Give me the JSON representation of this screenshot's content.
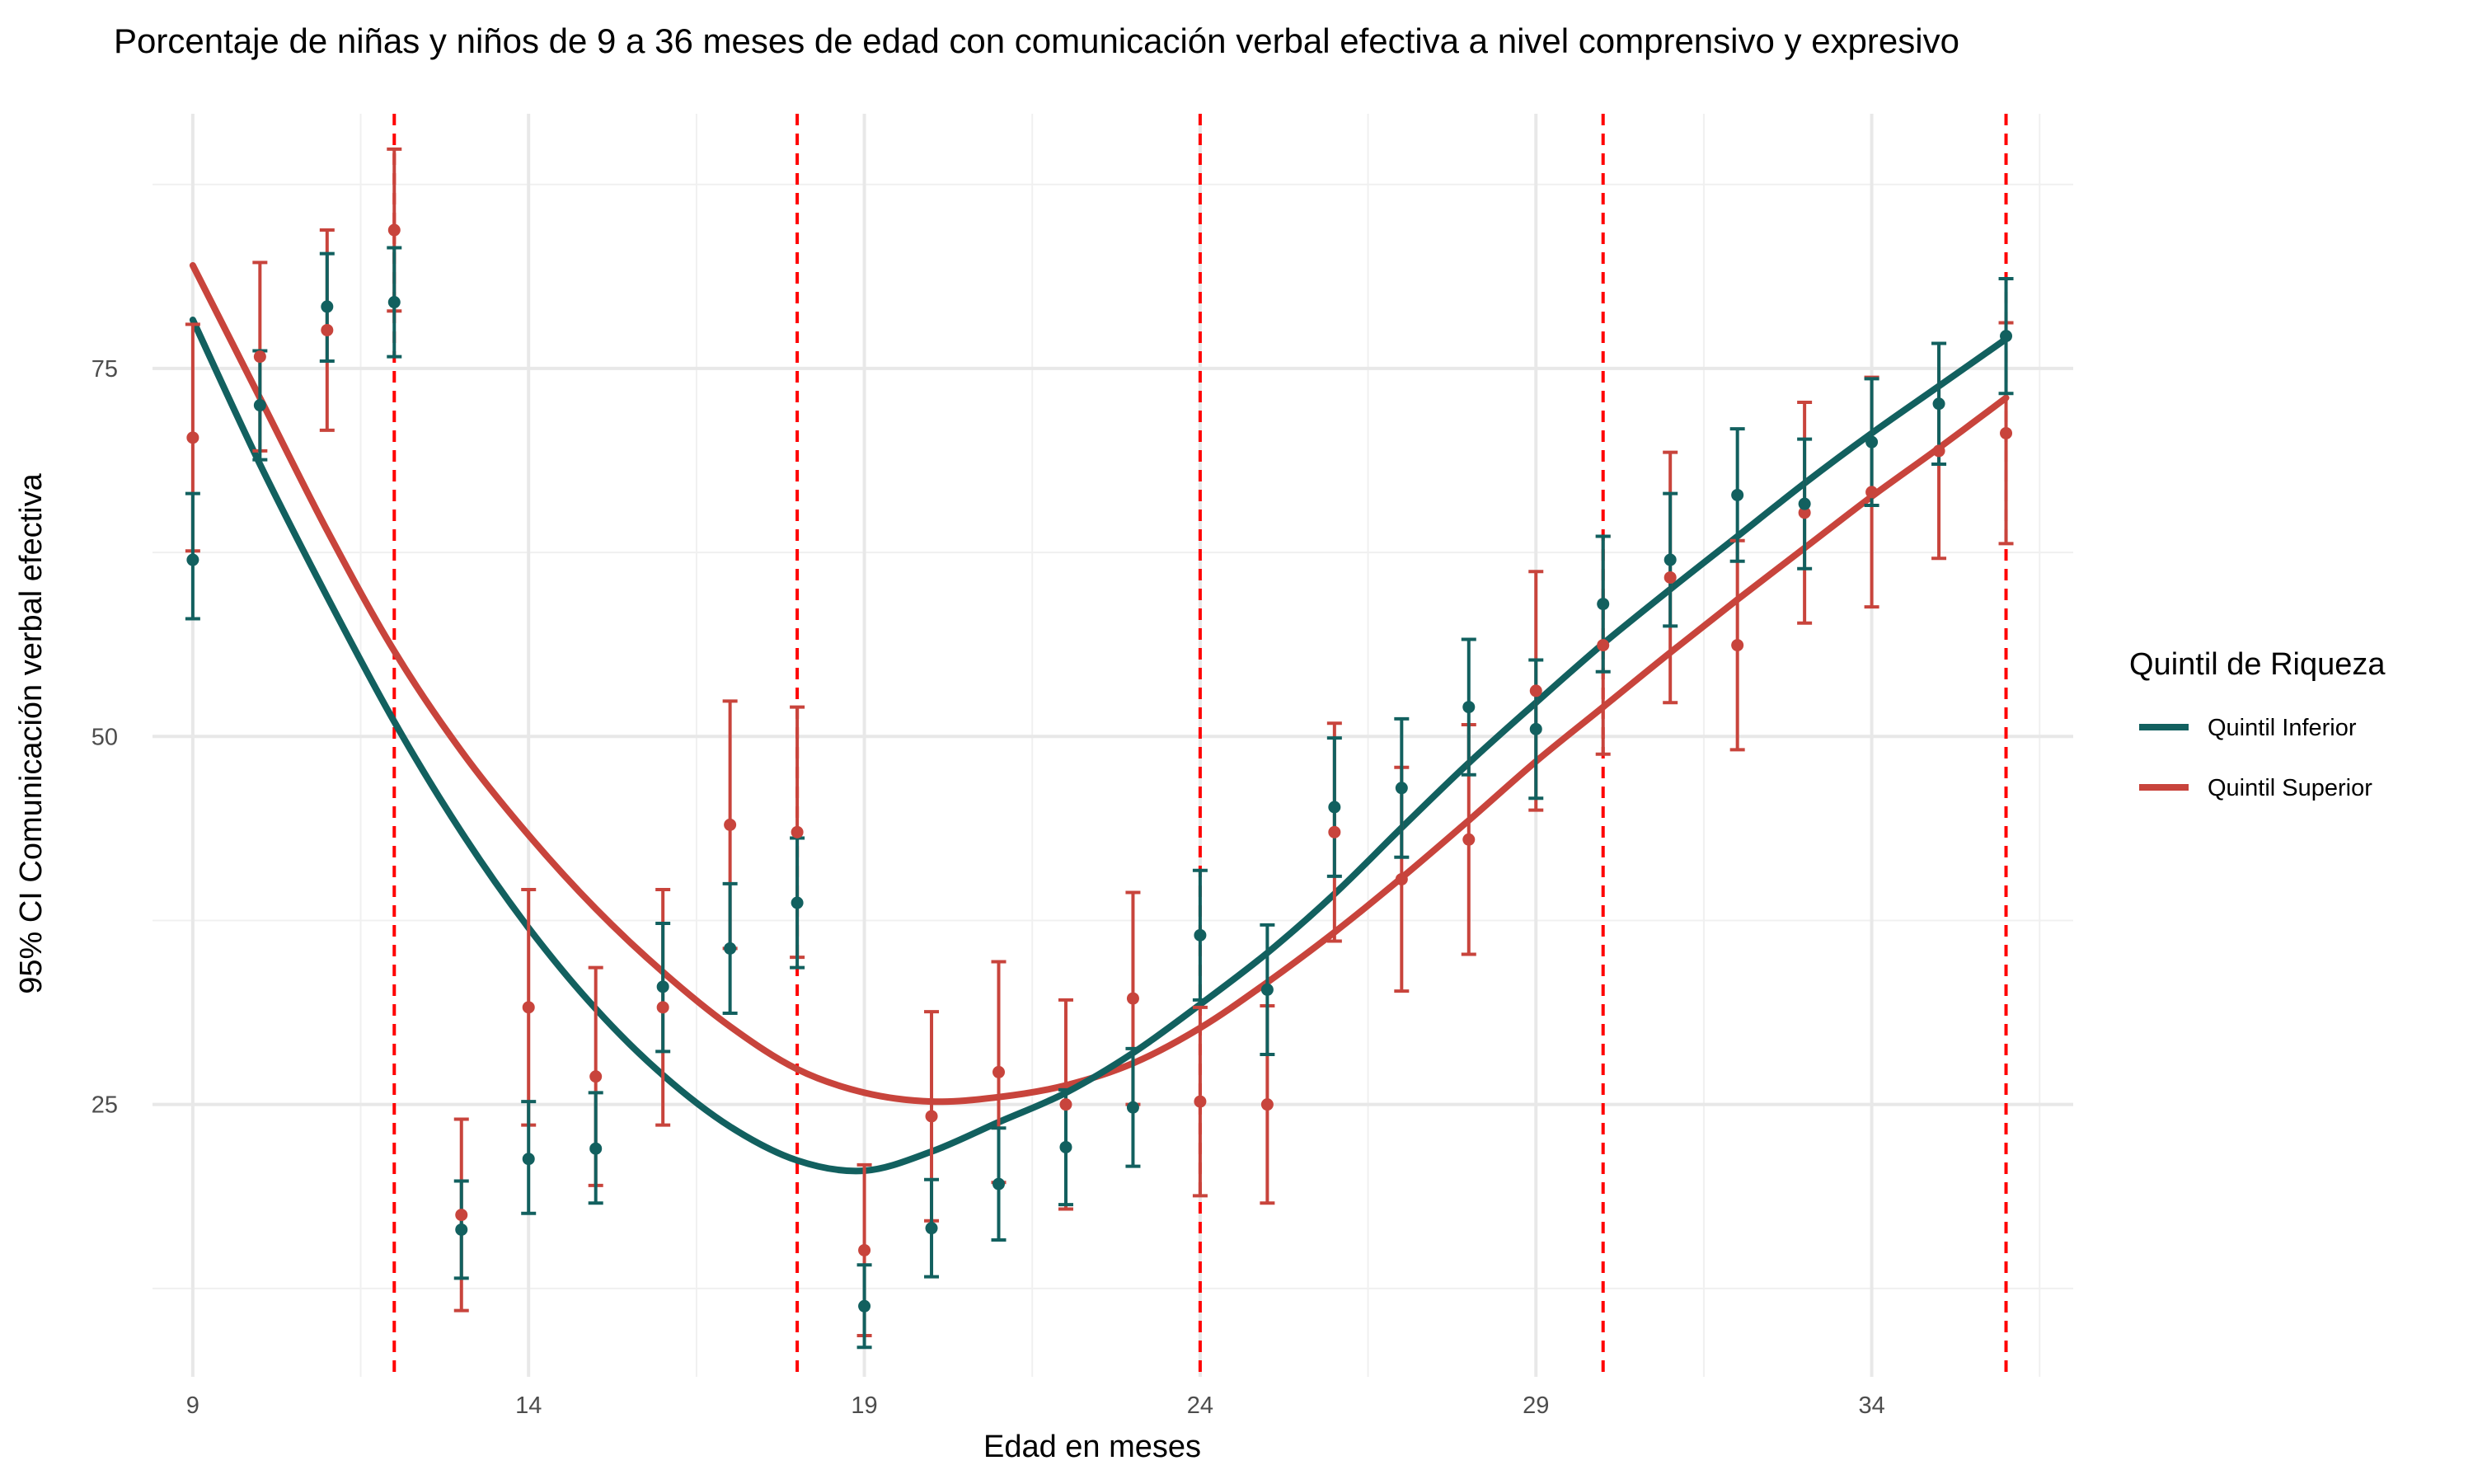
{
  "chart_data": {
    "type": "line",
    "title": "Porcentaje de niñas y niños de 9 a 36 meses de edad con comunicación verbal efectiva a nivel comprensivo y expresivo",
    "xlabel": "Edad en meses",
    "ylabel": "95% CI Comunicación verbal efectiva",
    "xlim": [
      8.4,
      37.0
    ],
    "ylim": [
      6.5,
      92.3
    ],
    "x_ticks": [
      9,
      14,
      19,
      24,
      29,
      34
    ],
    "y_ticks": [
      25,
      50,
      75
    ],
    "grid": true,
    "reference_lines": {
      "style": "dashed",
      "color": "#ff0000",
      "x": [
        12,
        18,
        24,
        30,
        36
      ]
    },
    "legend": {
      "title": "Quintil de Riqueza",
      "position": "right"
    },
    "series": [
      {
        "name": "Quintil Inferior",
        "color": "#12605f",
        "points": [
          {
            "x": 9,
            "y": 62.0,
            "lo": 58.0,
            "hi": 66.5
          },
          {
            "x": 10,
            "y": 72.5,
            "lo": 68.8,
            "hi": 76.2
          },
          {
            "x": 11,
            "y": 79.2,
            "lo": 75.5,
            "hi": 82.8
          },
          {
            "x": 12,
            "y": 79.5,
            "lo": 75.8,
            "hi": 83.2
          },
          {
            "x": 13,
            "y": 16.5,
            "lo": 13.2,
            "hi": 19.8
          },
          {
            "x": 14,
            "y": 21.3,
            "lo": 17.6,
            "hi": 25.2
          },
          {
            "x": 15,
            "y": 22.0,
            "lo": 18.3,
            "hi": 25.8
          },
          {
            "x": 16,
            "y": 33.0,
            "lo": 28.6,
            "hi": 37.3
          },
          {
            "x": 17,
            "y": 35.6,
            "lo": 31.2,
            "hi": 40.0
          },
          {
            "x": 18,
            "y": 38.7,
            "lo": 34.3,
            "hi": 43.1
          },
          {
            "x": 19,
            "y": 11.3,
            "lo": 8.5,
            "hi": 14.1
          },
          {
            "x": 20,
            "y": 16.6,
            "lo": 13.3,
            "hi": 19.9
          },
          {
            "x": 21,
            "y": 19.6,
            "lo": 15.8,
            "hi": 23.4
          },
          {
            "x": 22,
            "y": 22.1,
            "lo": 18.2,
            "hi": 26.0
          },
          {
            "x": 23,
            "y": 24.8,
            "lo": 20.8,
            "hi": 28.8
          },
          {
            "x": 24,
            "y": 36.5,
            "lo": 32.1,
            "hi": 40.9
          },
          {
            "x": 25,
            "y": 32.8,
            "lo": 28.4,
            "hi": 37.2
          },
          {
            "x": 26,
            "y": 45.2,
            "lo": 40.5,
            "hi": 49.9
          },
          {
            "x": 27,
            "y": 46.5,
            "lo": 41.8,
            "hi": 51.2
          },
          {
            "x": 28,
            "y": 52.0,
            "lo": 47.4,
            "hi": 56.6
          },
          {
            "x": 29,
            "y": 50.5,
            "lo": 45.8,
            "hi": 55.2
          },
          {
            "x": 30,
            "y": 59.0,
            "lo": 54.4,
            "hi": 63.6
          },
          {
            "x": 31,
            "y": 62.0,
            "lo": 57.5,
            "hi": 66.5
          },
          {
            "x": 32,
            "y": 66.4,
            "lo": 61.9,
            "hi": 70.9
          },
          {
            "x": 33,
            "y": 65.8,
            "lo": 61.4,
            "hi": 70.2
          },
          {
            "x": 34,
            "y": 70.0,
            "lo": 65.7,
            "hi": 74.3
          },
          {
            "x": 35,
            "y": 72.6,
            "lo": 68.5,
            "hi": 76.7
          },
          {
            "x": 36,
            "y": 77.2,
            "lo": 73.3,
            "hi": 81.1
          }
        ],
        "trend": [
          {
            "x": 9,
            "y": 78.3
          },
          {
            "x": 10,
            "y": 68.5
          },
          {
            "x": 11,
            "y": 59.5
          },
          {
            "x": 12,
            "y": 51.0
          },
          {
            "x": 13,
            "y": 43.5
          },
          {
            "x": 14,
            "y": 37.0
          },
          {
            "x": 15,
            "y": 31.5
          },
          {
            "x": 16,
            "y": 27.0
          },
          {
            "x": 17,
            "y": 23.5
          },
          {
            "x": 18,
            "y": 21.2
          },
          {
            "x": 19,
            "y": 20.5
          },
          {
            "x": 20,
            "y": 21.8
          },
          {
            "x": 21,
            "y": 23.8
          },
          {
            "x": 22,
            "y": 25.8
          },
          {
            "x": 23,
            "y": 28.5
          },
          {
            "x": 24,
            "y": 31.8
          },
          {
            "x": 25,
            "y": 35.3
          },
          {
            "x": 26,
            "y": 39.3
          },
          {
            "x": 27,
            "y": 43.8
          },
          {
            "x": 28,
            "y": 48.2
          },
          {
            "x": 29,
            "y": 52.3
          },
          {
            "x": 30,
            "y": 56.3
          },
          {
            "x": 31,
            "y": 60.0
          },
          {
            "x": 32,
            "y": 63.6
          },
          {
            "x": 33,
            "y": 67.2
          },
          {
            "x": 34,
            "y": 70.6
          },
          {
            "x": 35,
            "y": 73.8
          },
          {
            "x": 36,
            "y": 77.0
          }
        ]
      },
      {
        "name": "Quintil Superior",
        "color": "#c8443c",
        "points": [
          {
            "x": 9,
            "y": 70.3,
            "lo": 62.6,
            "hi": 78.0
          },
          {
            "x": 10,
            "y": 75.8,
            "lo": 69.4,
            "hi": 82.2
          },
          {
            "x": 11,
            "y": 77.6,
            "lo": 70.8,
            "hi": 84.4
          },
          {
            "x": 12,
            "y": 84.4,
            "lo": 78.9,
            "hi": 89.9
          },
          {
            "x": 13,
            "y": 17.5,
            "lo": 11.0,
            "hi": 24.0
          },
          {
            "x": 14,
            "y": 31.6,
            "lo": 23.6,
            "hi": 39.6
          },
          {
            "x": 15,
            "y": 26.9,
            "lo": 19.5,
            "hi": 34.3
          },
          {
            "x": 16,
            "y": 31.6,
            "lo": 23.6,
            "hi": 39.6
          },
          {
            "x": 17,
            "y": 44.0,
            "lo": 35.6,
            "hi": 52.4
          },
          {
            "x": 18,
            "y": 43.5,
            "lo": 35.0,
            "hi": 52.0
          },
          {
            "x": 19,
            "y": 15.1,
            "lo": 9.3,
            "hi": 20.9
          },
          {
            "x": 20,
            "y": 24.2,
            "lo": 17.1,
            "hi": 31.3
          },
          {
            "x": 21,
            "y": 27.2,
            "lo": 19.7,
            "hi": 34.7
          },
          {
            "x": 22,
            "y": 25.0,
            "lo": 17.9,
            "hi": 32.1
          },
          {
            "x": 23,
            "y": 32.2,
            "lo": 25.0,
            "hi": 39.4
          },
          {
            "x": 24,
            "y": 25.2,
            "lo": 18.8,
            "hi": 31.6
          },
          {
            "x": 25,
            "y": 25.0,
            "lo": 18.3,
            "hi": 31.7
          },
          {
            "x": 26,
            "y": 43.5,
            "lo": 36.1,
            "hi": 50.9
          },
          {
            "x": 27,
            "y": 40.3,
            "lo": 32.7,
            "hi": 47.9
          },
          {
            "x": 28,
            "y": 43.0,
            "lo": 35.2,
            "hi": 50.8
          },
          {
            "x": 29,
            "y": 53.1,
            "lo": 45.0,
            "hi": 61.2
          },
          {
            "x": 30,
            "y": 56.2,
            "lo": 48.8,
            "hi": 63.6
          },
          {
            "x": 31,
            "y": 60.8,
            "lo": 52.3,
            "hi": 69.3
          },
          {
            "x": 32,
            "y": 56.2,
            "lo": 49.1,
            "hi": 63.3
          },
          {
            "x": 33,
            "y": 65.2,
            "lo": 57.7,
            "hi": 72.7
          },
          {
            "x": 34,
            "y": 66.6,
            "lo": 58.8,
            "hi": 74.4
          },
          {
            "x": 35,
            "y": 69.4,
            "lo": 62.1,
            "hi": 76.7
          },
          {
            "x": 36,
            "y": 70.6,
            "lo": 63.1,
            "hi": 78.1
          }
        ],
        "trend": [
          {
            "x": 9,
            "y": 82.0
          },
          {
            "x": 10,
            "y": 73.0
          },
          {
            "x": 11,
            "y": 64.0
          },
          {
            "x": 12,
            "y": 55.8
          },
          {
            "x": 13,
            "y": 49.0
          },
          {
            "x": 14,
            "y": 43.3
          },
          {
            "x": 15,
            "y": 38.3
          },
          {
            "x": 16,
            "y": 34.0
          },
          {
            "x": 17,
            "y": 30.3
          },
          {
            "x": 18,
            "y": 27.4
          },
          {
            "x": 19,
            "y": 25.8
          },
          {
            "x": 20,
            "y": 25.2
          },
          {
            "x": 21,
            "y": 25.5
          },
          {
            "x": 22,
            "y": 26.3
          },
          {
            "x": 23,
            "y": 27.8
          },
          {
            "x": 24,
            "y": 30.2
          },
          {
            "x": 25,
            "y": 33.3
          },
          {
            "x": 26,
            "y": 36.7
          },
          {
            "x": 27,
            "y": 40.4
          },
          {
            "x": 28,
            "y": 44.3
          },
          {
            "x": 29,
            "y": 48.3
          },
          {
            "x": 30,
            "y": 52.0
          },
          {
            "x": 31,
            "y": 55.7
          },
          {
            "x": 32,
            "y": 59.3
          },
          {
            "x": 33,
            "y": 62.8
          },
          {
            "x": 34,
            "y": 66.3
          },
          {
            "x": 35,
            "y": 69.6
          },
          {
            "x": 36,
            "y": 73.0
          }
        ]
      }
    ]
  }
}
